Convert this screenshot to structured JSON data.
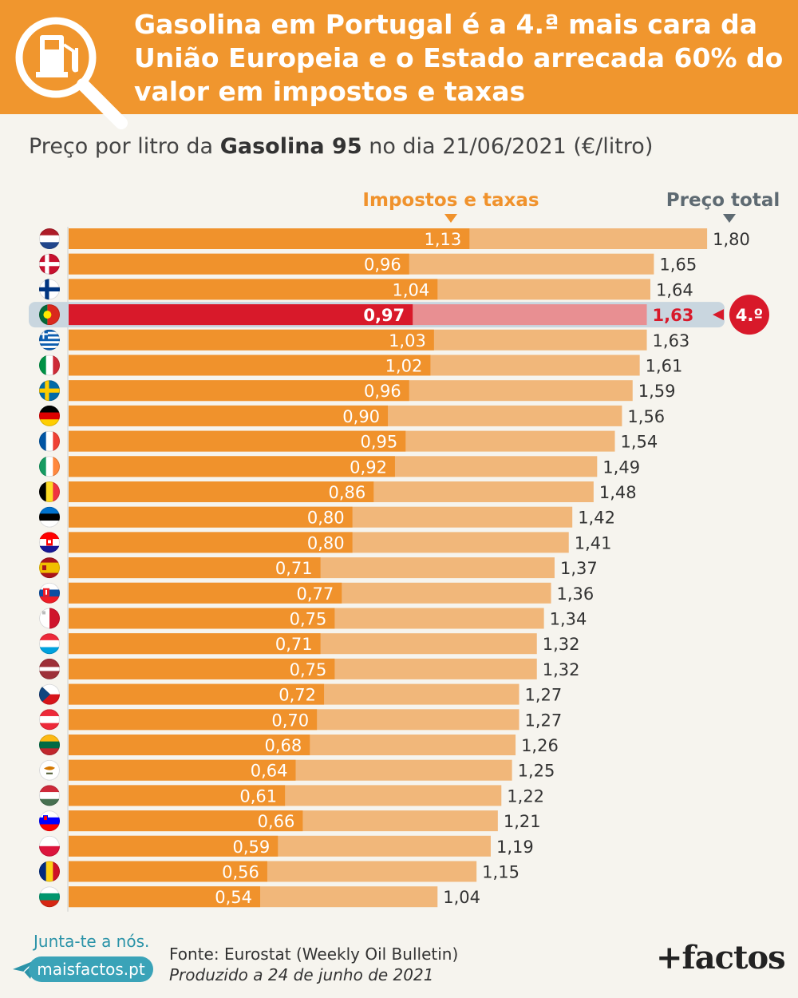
{
  "header": {
    "title": "Gasolina em Portugal é a 4.ª mais cara da União Europeia e o Estado arrecada 60% do valor em impostos e taxas",
    "icon": "fuel-pump-magnifier-icon"
  },
  "subtitle": {
    "prefix": "Preço por litro da ",
    "bold": "Gasolina 95",
    "suffix": " no dia 21/06/2021 (€/litro)"
  },
  "chart_data": {
    "type": "bar",
    "legend": {
      "taxes": "Impostos e taxas",
      "total": "Preço total"
    },
    "categories": [
      "nl",
      "dk",
      "fi",
      "pt",
      "gr",
      "it",
      "se",
      "de",
      "fr",
      "ie",
      "be",
      "ee",
      "hr",
      "es",
      "sk",
      "mt",
      "lu",
      "lv",
      "cz",
      "at",
      "lt",
      "cy",
      "hu",
      "si",
      "pl",
      "ro",
      "bg"
    ],
    "series": [
      {
        "name": "Impostos e taxas",
        "values": [
          1.13,
          0.96,
          1.04,
          0.97,
          1.03,
          1.02,
          0.96,
          0.9,
          0.95,
          0.92,
          0.86,
          0.8,
          0.8,
          0.71,
          0.77,
          0.75,
          0.71,
          0.75,
          0.72,
          0.7,
          0.68,
          0.64,
          0.61,
          0.66,
          0.59,
          0.56,
          0.54
        ]
      },
      {
        "name": "Preço total",
        "values": [
          1.8,
          1.65,
          1.64,
          1.63,
          1.63,
          1.61,
          1.59,
          1.56,
          1.54,
          1.49,
          1.48,
          1.42,
          1.41,
          1.37,
          1.36,
          1.34,
          1.32,
          1.32,
          1.27,
          1.27,
          1.26,
          1.25,
          1.22,
          1.21,
          1.19,
          1.15,
          1.04
        ]
      }
    ],
    "tax_labels": [
      "1,13",
      "0,96",
      "1,04",
      "0,97",
      "1,03",
      "1,02",
      "0,96",
      "0,90",
      "0,95",
      "0,92",
      "0,86",
      "0,80",
      "0,80",
      "0,71",
      "0,77",
      "0,75",
      "0,71",
      "0,75",
      "0,72",
      "0,70",
      "0,68",
      "0,64",
      "0,61",
      "0,66",
      "0,59",
      "0,56",
      "0,54"
    ],
    "total_labels": [
      "1,80",
      "1,65",
      "1,64",
      "1,63",
      "1,63",
      "1,61",
      "1,59",
      "1,56",
      "1,54",
      "1,49",
      "1,48",
      "1,42",
      "1,41",
      "1,37",
      "1,36",
      "1,34",
      "1,32",
      "1,32",
      "1,27",
      "1,27",
      "1,26",
      "1,25",
      "1,22",
      "1,21",
      "1,19",
      "1,15",
      "1,04"
    ],
    "highlight_index": 3,
    "highlight_badge": "4.º",
    "colors": {
      "taxes": "#f0922c",
      "total": "#f1b77a",
      "highlight_taxes": "#d8192a",
      "highlight_total": "#e88f92",
      "highlight_row": "#c9d6df",
      "total_marker": "#5e6a72"
    }
  },
  "footer": {
    "join": "Junta-te a nós.",
    "site": "maisfactos.pt",
    "source": "Fonte: Eurostat (Weekly Oil Bulletin)",
    "produced": "Produzido a 24 de junho de 2021",
    "brand": "+factos"
  }
}
